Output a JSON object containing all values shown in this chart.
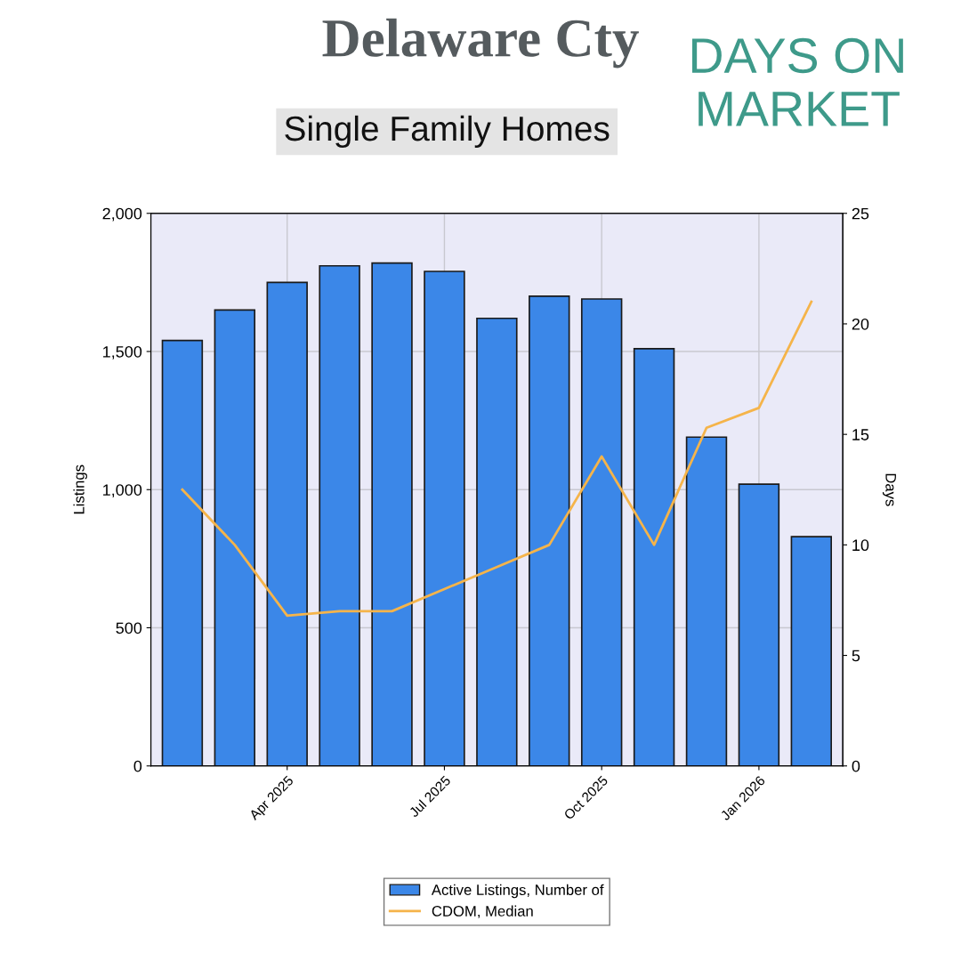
{
  "chart_data": {
    "type": "bar",
    "title": "Delaware Cty",
    "subtitle": "Single Family Homes",
    "annotations": [
      "DAYS ON MARKET"
    ],
    "categories": [
      null,
      null,
      "Apr 2025",
      null,
      null,
      "Jul 2025",
      null,
      null,
      "Oct 2025",
      null,
      null,
      "Jan 2026",
      null
    ],
    "ylabel": "Listings",
    "y2label": "Days",
    "series": [
      {
        "name": "Active Listings, Number of",
        "color": "#3b87e8",
        "values": [
          1540,
          1650,
          1750,
          1810,
          1820,
          1790,
          1620,
          1700,
          1690,
          1510,
          1190,
          1020,
          830
        ]
      },
      {
        "name": "CDOM, Median",
        "type": "line",
        "axis": "y2",
        "color": "#f5b44a",
        "values": [
          12.5,
          10,
          6.8,
          7,
          7,
          8,
          9,
          10,
          14,
          10,
          15.3,
          16.2,
          21
        ]
      }
    ],
    "ylim": [
      0,
      2000
    ],
    "yticks": [
      {
        "value": 0,
        "label": "0"
      },
      {
        "value": 500,
        "label": "500"
      },
      {
        "value": 1000,
        "label": "1,000"
      },
      {
        "value": 1500,
        "label": "1,500"
      },
      {
        "value": 2000,
        "label": "2,000"
      }
    ],
    "y2lim": [
      0,
      25
    ],
    "y2ticks": [
      0,
      5,
      10,
      15,
      20,
      25
    ],
    "grid": true,
    "legend": "bottom",
    "marker": "none",
    "line_style": "solid"
  }
}
